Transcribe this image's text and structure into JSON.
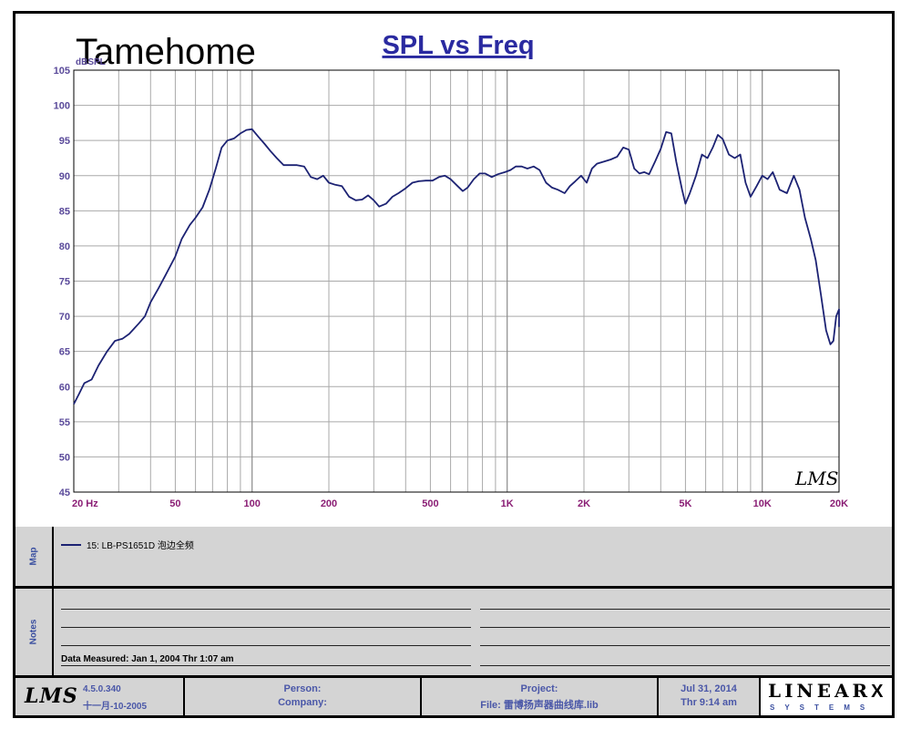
{
  "watermark": "Tamehome",
  "chart_data": {
    "type": "line",
    "title": "SPL vs Freq",
    "ylabel": "dBSPL",
    "xlabel": "",
    "x_scale": "log",
    "xlim": [
      20,
      20000
    ],
    "ylim": [
      45,
      105
    ],
    "y_ticks": [
      105,
      100,
      95,
      90,
      85,
      80,
      75,
      70,
      65,
      60,
      55,
      50,
      45
    ],
    "x_ticks": [
      {
        "value": 20,
        "label": "20  Hz"
      },
      {
        "value": 50,
        "label": "50"
      },
      {
        "value": 100,
        "label": "100"
      },
      {
        "value": 200,
        "label": "200"
      },
      {
        "value": 500,
        "label": "500"
      },
      {
        "value": 1000,
        "label": "1K"
      },
      {
        "value": 2000,
        "label": "2K"
      },
      {
        "value": 5000,
        "label": "5K"
      },
      {
        "value": 10000,
        "label": "10K"
      },
      {
        "value": 20000,
        "label": "20K"
      }
    ],
    "grid": true,
    "watermark_logo": "LMS",
    "series": [
      {
        "name": "15: LB-PS1651D 泡边全频",
        "color": "#1c2273",
        "points": [
          [
            20,
            57.5
          ],
          [
            21,
            59
          ],
          [
            22,
            60.5
          ],
          [
            23.5,
            61
          ],
          [
            25,
            63
          ],
          [
            27,
            65
          ],
          [
            29,
            66.5
          ],
          [
            31,
            66.8
          ],
          [
            33,
            67.5
          ],
          [
            36,
            69
          ],
          [
            38,
            70
          ],
          [
            40,
            72
          ],
          [
            43,
            74
          ],
          [
            46,
            76
          ],
          [
            50,
            78.5
          ],
          [
            53,
            81
          ],
          [
            57,
            83
          ],
          [
            60,
            84
          ],
          [
            64,
            85.5
          ],
          [
            68,
            88
          ],
          [
            72,
            91
          ],
          [
            76,
            94
          ],
          [
            80,
            95
          ],
          [
            85,
            95.3
          ],
          [
            90,
            96
          ],
          [
            95,
            96.5
          ],
          [
            100,
            96.6
          ],
          [
            106,
            95.5
          ],
          [
            112,
            94.5
          ],
          [
            118,
            93.5
          ],
          [
            125,
            92.5
          ],
          [
            133,
            91.5
          ],
          [
            141,
            91.5
          ],
          [
            150,
            91.5
          ],
          [
            160,
            91.3
          ],
          [
            170,
            89.8
          ],
          [
            180,
            89.5
          ],
          [
            190,
            90
          ],
          [
            200,
            89
          ],
          [
            212,
            88.7
          ],
          [
            225,
            88.5
          ],
          [
            240,
            87
          ],
          [
            255,
            86.5
          ],
          [
            270,
            86.6
          ],
          [
            285,
            87.2
          ],
          [
            300,
            86.5
          ],
          [
            315,
            85.6
          ],
          [
            335,
            86
          ],
          [
            355,
            87
          ],
          [
            375,
            87.5
          ],
          [
            400,
            88.2
          ],
          [
            425,
            89
          ],
          [
            450,
            89.2
          ],
          [
            480,
            89.3
          ],
          [
            510,
            89.3
          ],
          [
            540,
            89.8
          ],
          [
            570,
            90
          ],
          [
            600,
            89.5
          ],
          [
            640,
            88.5
          ],
          [
            670,
            87.8
          ],
          [
            700,
            88.3
          ],
          [
            740,
            89.5
          ],
          [
            780,
            90.3
          ],
          [
            820,
            90.3
          ],
          [
            870,
            89.8
          ],
          [
            920,
            90.2
          ],
          [
            980,
            90.5
          ],
          [
            1030,
            90.8
          ],
          [
            1080,
            91.3
          ],
          [
            1140,
            91.3
          ],
          [
            1200,
            91
          ],
          [
            1270,
            91.3
          ],
          [
            1340,
            90.8
          ],
          [
            1420,
            89
          ],
          [
            1500,
            88.3
          ],
          [
            1580,
            88
          ],
          [
            1680,
            87.5
          ],
          [
            1760,
            88.5
          ],
          [
            1850,
            89.2
          ],
          [
            1950,
            90
          ],
          [
            2050,
            89
          ],
          [
            2150,
            91
          ],
          [
            2250,
            91.7
          ],
          [
            2400,
            92
          ],
          [
            2550,
            92.3
          ],
          [
            2700,
            92.7
          ],
          [
            2850,
            94
          ],
          [
            3000,
            93.7
          ],
          [
            3150,
            91
          ],
          [
            3300,
            90.3
          ],
          [
            3450,
            90.5
          ],
          [
            3600,
            90.2
          ],
          [
            3800,
            92
          ],
          [
            4000,
            93.8
          ],
          [
            4200,
            96.2
          ],
          [
            4400,
            96
          ],
          [
            4600,
            92
          ],
          [
            4850,
            88
          ],
          [
            5000,
            86
          ],
          [
            5200,
            87.5
          ],
          [
            5500,
            90
          ],
          [
            5800,
            93
          ],
          [
            6100,
            92.5
          ],
          [
            6400,
            94
          ],
          [
            6700,
            95.8
          ],
          [
            7000,
            95.2
          ],
          [
            7400,
            93
          ],
          [
            7800,
            92.5
          ],
          [
            8200,
            93
          ],
          [
            8600,
            89
          ],
          [
            9000,
            87
          ],
          [
            9500,
            88.5
          ],
          [
            10000,
            90
          ],
          [
            10500,
            89.5
          ],
          [
            11000,
            90.5
          ],
          [
            11700,
            88
          ],
          [
            12500,
            87.5
          ],
          [
            13300,
            90
          ],
          [
            14000,
            88
          ],
          [
            14700,
            84
          ],
          [
            15500,
            81
          ],
          [
            16200,
            78
          ],
          [
            17000,
            73
          ],
          [
            17800,
            68
          ],
          [
            18500,
            66
          ],
          [
            19000,
            66.5
          ],
          [
            19500,
            70
          ],
          [
            20000,
            71
          ],
          [
            20000,
            68.5
          ]
        ]
      }
    ]
  },
  "map_panel": {
    "label": "Map",
    "entry": "15: LB-PS1651D 泡边全频"
  },
  "notes_panel": {
    "label": "Notes",
    "data_measured": "Data Measured: Jan  1, 2004  Thr  1:07 am"
  },
  "footer": {
    "logo": "LMS",
    "version": "4.5.0.340",
    "version_date": "十一月-10-2005",
    "person_label": "Person:",
    "company_label": "Company:",
    "project_label": "Project:",
    "file_label": "File: 雷博扬声器曲线库.lib",
    "date": "Jul 31, 2014",
    "time": "Thr  9:14 am",
    "brand_top": "LINEAR",
    "brand_x": "X",
    "brand_bottom": "SYSTEMS"
  }
}
